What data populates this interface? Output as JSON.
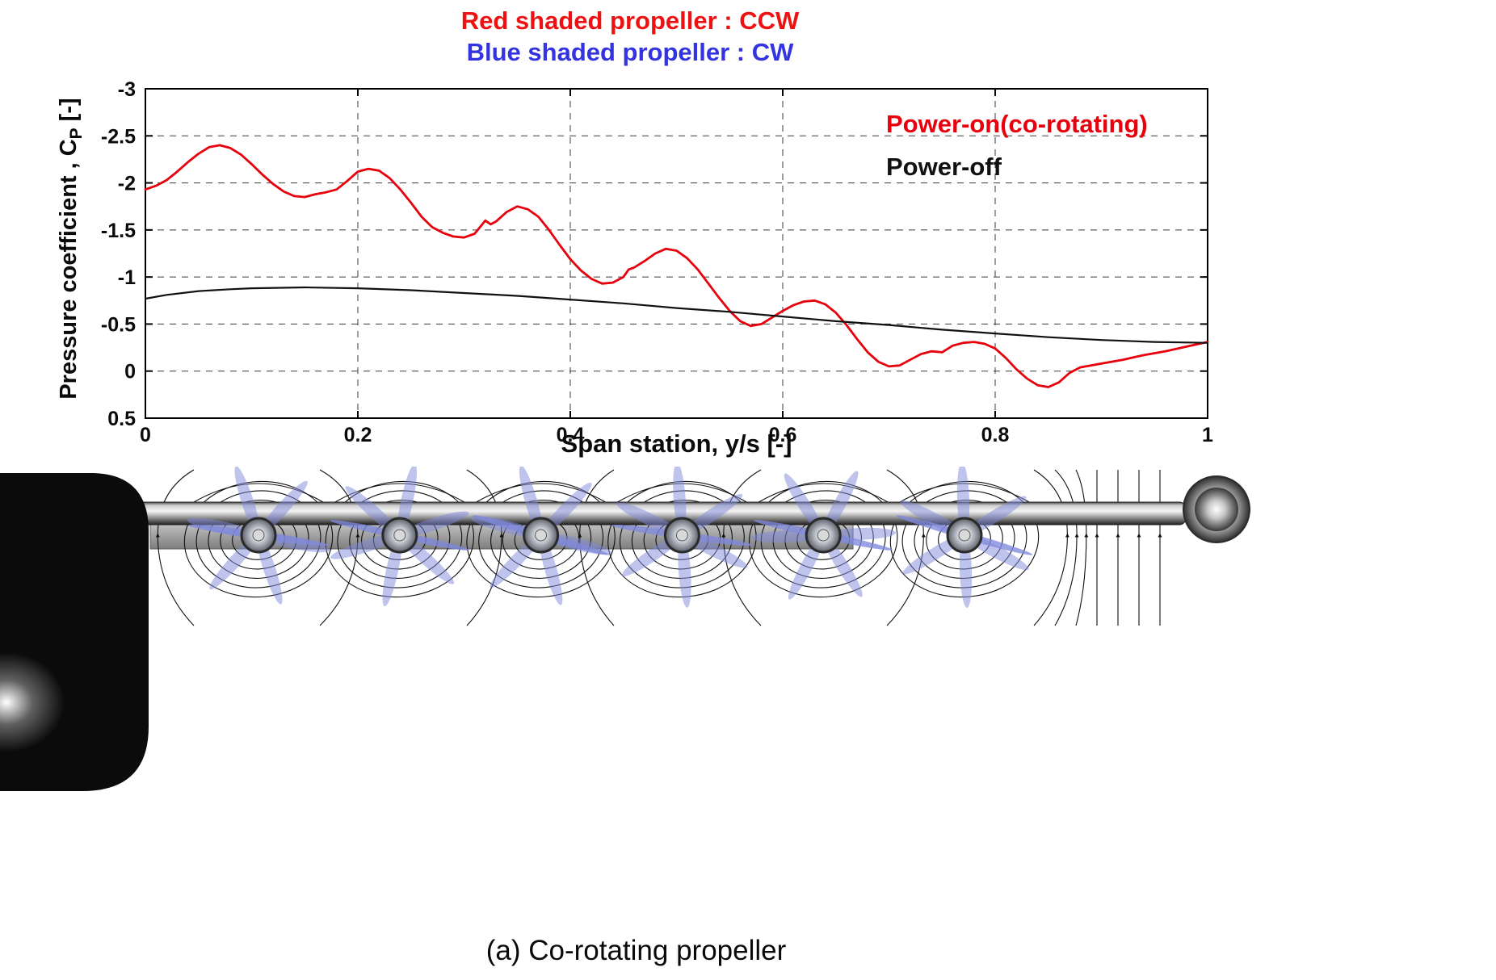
{
  "header": {
    "line1": "Red shaded propeller : CCW",
    "line2": "Blue shaded propeller : CW",
    "line1_color": "#ee1111",
    "line2_color": "#3333e0"
  },
  "chart_data": {
    "type": "line",
    "xlabel": "Span station, y/s [-]",
    "ylabel_prefix": "Pressure coefficient , C",
    "ylabel_sub": "P",
    "ylabel_suffix": " [-]",
    "xlim": [
      0,
      1
    ],
    "ylim": [
      -3,
      0.5
    ],
    "y_axis_inverted_negative_up": true,
    "grid": "dashed",
    "x_ticks": [
      0,
      0.2,
      0.4,
      0.6,
      0.8,
      1
    ],
    "x_tick_labels": [
      "0",
      "0.2",
      "0.4",
      "0.6",
      "0.8",
      "1"
    ],
    "y_ticks": [
      -3,
      -2.5,
      -2,
      -1.5,
      -1,
      -0.5,
      0,
      0.5
    ],
    "y_tick_labels": [
      "-3",
      "-2.5",
      "-2",
      "-1.5",
      "-1",
      "-0.5",
      "0",
      "0.5"
    ],
    "legend_position": "top-right-inside",
    "series": [
      {
        "name": "Power-on(co-rotating)",
        "color": "#e8000d",
        "width": 2.8,
        "x": [
          0,
          0.01,
          0.02,
          0.03,
          0.04,
          0.05,
          0.06,
          0.07,
          0.08,
          0.09,
          0.1,
          0.11,
          0.12,
          0.13,
          0.14,
          0.15,
          0.16,
          0.17,
          0.18,
          0.19,
          0.2,
          0.21,
          0.22,
          0.23,
          0.24,
          0.25,
          0.26,
          0.27,
          0.28,
          0.29,
          0.3,
          0.31,
          0.32,
          0.325,
          0.33,
          0.34,
          0.35,
          0.36,
          0.37,
          0.38,
          0.39,
          0.4,
          0.41,
          0.42,
          0.43,
          0.44,
          0.45,
          0.455,
          0.46,
          0.47,
          0.48,
          0.49,
          0.5,
          0.51,
          0.52,
          0.53,
          0.54,
          0.55,
          0.56,
          0.57,
          0.58,
          0.59,
          0.6,
          0.61,
          0.62,
          0.63,
          0.64,
          0.65,
          0.66,
          0.67,
          0.68,
          0.69,
          0.7,
          0.71,
          0.72,
          0.73,
          0.74,
          0.75,
          0.76,
          0.77,
          0.78,
          0.79,
          0.8,
          0.81,
          0.82,
          0.83,
          0.84,
          0.85,
          0.86,
          0.87,
          0.88,
          0.9,
          0.92,
          0.94,
          0.96,
          0.98,
          1
        ],
        "y": [
          -1.93,
          -1.97,
          -2.03,
          -2.12,
          -2.22,
          -2.31,
          -2.38,
          -2.4,
          -2.37,
          -2.3,
          -2.2,
          -2.09,
          -1.99,
          -1.91,
          -1.86,
          -1.85,
          -1.88,
          -1.9,
          -1.93,
          -2.02,
          -2.12,
          -2.15,
          -2.13,
          -2.05,
          -1.93,
          -1.79,
          -1.64,
          -1.53,
          -1.47,
          -1.43,
          -1.42,
          -1.46,
          -1.6,
          -1.56,
          -1.59,
          -1.69,
          -1.75,
          -1.72,
          -1.64,
          -1.5,
          -1.34,
          -1.19,
          -1.07,
          -0.98,
          -0.93,
          -0.94,
          -1.0,
          -1.08,
          -1.1,
          -1.17,
          -1.25,
          -1.3,
          -1.28,
          -1.2,
          -1.08,
          -0.93,
          -0.78,
          -0.64,
          -0.53,
          -0.48,
          -0.5,
          -0.57,
          -0.64,
          -0.7,
          -0.74,
          -0.75,
          -0.71,
          -0.62,
          -0.49,
          -0.34,
          -0.2,
          -0.1,
          -0.05,
          -0.06,
          -0.12,
          -0.18,
          -0.21,
          -0.2,
          -0.27,
          -0.3,
          -0.31,
          -0.29,
          -0.24,
          -0.14,
          -0.02,
          0.08,
          0.15,
          0.17,
          0.12,
          0.02,
          -0.04,
          -0.08,
          -0.12,
          -0.17,
          -0.21,
          -0.26,
          -0.31
        ]
      },
      {
        "name": "Power-off",
        "color": "#111111",
        "width": 2.2,
        "x": [
          0,
          0.02,
          0.05,
          0.08,
          0.1,
          0.15,
          0.2,
          0.25,
          0.3,
          0.35,
          0.4,
          0.45,
          0.5,
          0.55,
          0.6,
          0.65,
          0.7,
          0.75,
          0.8,
          0.85,
          0.9,
          0.95,
          1
        ],
        "y": [
          -0.77,
          -0.81,
          -0.85,
          -0.87,
          -0.88,
          -0.89,
          -0.88,
          -0.86,
          -0.83,
          -0.8,
          -0.76,
          -0.72,
          -0.67,
          -0.63,
          -0.58,
          -0.53,
          -0.49,
          -0.44,
          -0.4,
          -0.36,
          -0.33,
          -0.31,
          -0.3
        ]
      }
    ]
  },
  "flow_figure": {
    "propeller_count": 6,
    "propeller_blade_color": "#8089dc",
    "streamline_color": "#101010",
    "fuselage_color": "#0b0b0b"
  },
  "caption": "(a) Co-rotating propeller"
}
